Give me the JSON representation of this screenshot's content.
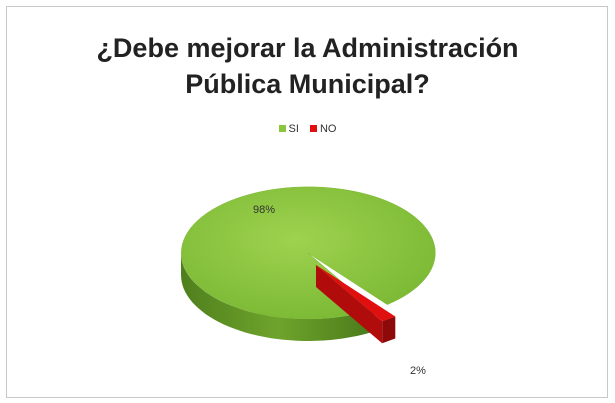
{
  "chart_data": {
    "type": "pie",
    "title_lines": [
      "¿Debe mejorar la Administración",
      "Pública Municipal?"
    ],
    "categories": [
      "SI",
      "NO"
    ],
    "values": [
      98,
      2
    ],
    "data_labels": [
      "98%",
      "2%"
    ],
    "legend_position": "top",
    "colors": {
      "SI": "#8cc63f",
      "NO": "#e01010"
    },
    "style": "3d-exploded"
  }
}
